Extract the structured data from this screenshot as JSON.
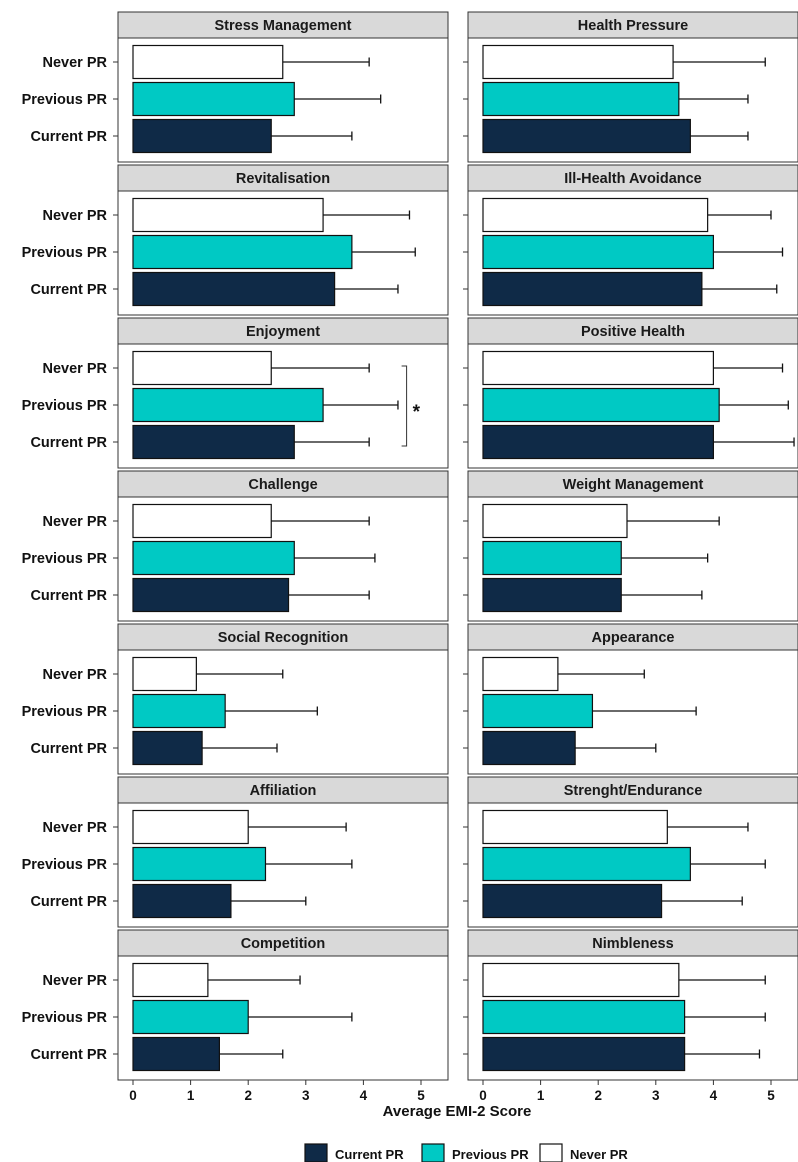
{
  "chart_data": {
    "type": "bar",
    "orientation": "horizontal",
    "xlabel": "Average EMI-2 Score",
    "xlim": [
      0,
      5
    ],
    "xticks": [
      "0",
      "1",
      "2",
      "3",
      "4",
      "5"
    ],
    "categories": [
      "Never PR",
      "Previous PR",
      "Current PR"
    ],
    "legend": {
      "position": "bottom",
      "entries": [
        "Current PR",
        "Previous PR",
        "Never PR"
      ]
    },
    "colors": {
      "Never PR": "#ffffff",
      "Previous PR": "#00c9c4",
      "Current PR": "#0f2a47"
    },
    "panels": [
      {
        "title": "Stress Management",
        "values": [
          2.6,
          2.8,
          2.4
        ],
        "errors": [
          1.5,
          1.5,
          1.4
        ]
      },
      {
        "title": "Health Pressure",
        "values": [
          3.3,
          3.4,
          3.6
        ],
        "errors": [
          1.6,
          1.2,
          1.0
        ]
      },
      {
        "title": "Revitalisation",
        "values": [
          3.3,
          3.8,
          3.5
        ],
        "errors": [
          1.5,
          1.1,
          1.1
        ]
      },
      {
        "title": "Ill-Health Avoidance",
        "values": [
          3.9,
          4.0,
          3.8
        ],
        "errors": [
          1.1,
          1.2,
          1.3
        ]
      },
      {
        "title": "Enjoyment",
        "values": [
          2.4,
          3.3,
          2.8
        ],
        "errors": [
          1.7,
          1.3,
          1.3
        ],
        "significance": {
          "label": "*",
          "rows": [
            0,
            2
          ]
        }
      },
      {
        "title": "Positive Health",
        "values": [
          4.0,
          4.1,
          4.0
        ],
        "errors": [
          1.2,
          1.2,
          1.4
        ]
      },
      {
        "title": "Challenge",
        "values": [
          2.4,
          2.8,
          2.7
        ],
        "errors": [
          1.7,
          1.4,
          1.4
        ]
      },
      {
        "title": "Weight Management",
        "values": [
          2.5,
          2.4,
          2.4
        ],
        "errors": [
          1.6,
          1.5,
          1.4
        ]
      },
      {
        "title": "Social Recognition",
        "values": [
          1.1,
          1.6,
          1.2
        ],
        "errors": [
          1.5,
          1.6,
          1.3
        ]
      },
      {
        "title": "Appearance",
        "values": [
          1.3,
          1.9,
          1.6
        ],
        "errors": [
          1.5,
          1.8,
          1.4
        ]
      },
      {
        "title": "Affiliation",
        "values": [
          2.0,
          2.3,
          1.7
        ],
        "errors": [
          1.7,
          1.5,
          1.3
        ]
      },
      {
        "title": "Strenght/Endurance",
        "values": [
          3.2,
          3.6,
          3.1
        ],
        "errors": [
          1.4,
          1.3,
          1.4
        ]
      },
      {
        "title": "Competition",
        "values": [
          1.3,
          2.0,
          1.5
        ],
        "errors": [
          1.6,
          1.8,
          1.1
        ]
      },
      {
        "title": "Nimbleness",
        "values": [
          3.4,
          3.5,
          3.5
        ],
        "errors": [
          1.5,
          1.4,
          1.3
        ]
      }
    ]
  }
}
